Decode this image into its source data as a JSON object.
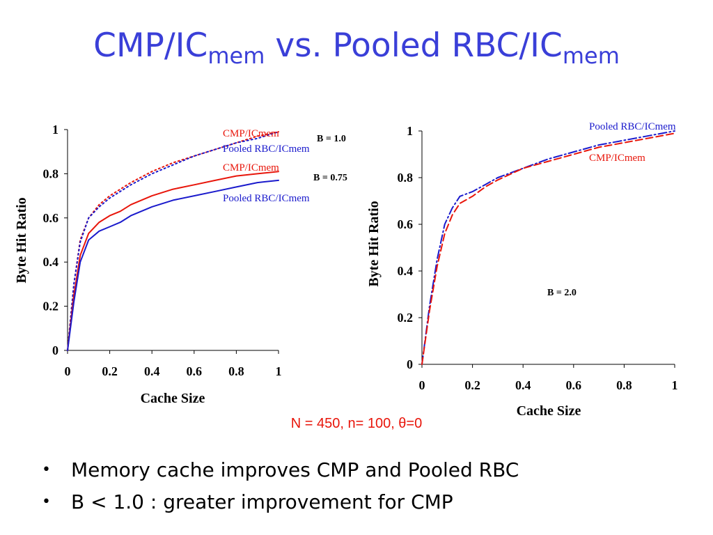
{
  "title": {
    "main": "CMP/IC",
    "sub1": "mem",
    "mid": " vs. Pooled RBC/IC",
    "sub2": "mem"
  },
  "colors": {
    "title": "#3a3fd8",
    "red": "#e8150a",
    "blue": "#1a1acc"
  },
  "params": "N = 450, n= 100, θ=0",
  "bullets": [
    "Memory cache improves CMP and Pooled RBC",
    "B < 1.0 : greater improvement for CMP"
  ],
  "chart_data": [
    {
      "type": "line",
      "xlabel": "Cache Size",
      "ylabel": "Byte Hit Ratio",
      "xlim": [
        0,
        1
      ],
      "ylim": [
        0,
        1
      ],
      "x_ticks": [
        "0",
        "0.2",
        "0.4",
        "0.6",
        "0.8",
        "1"
      ],
      "y_ticks": [
        "0",
        "0.2",
        "0.4",
        "0.6",
        "0.8",
        "1"
      ],
      "annotations": [
        "B = 1.0",
        "B = 0.75"
      ],
      "series": [
        {
          "name": "CMP/ICmem",
          "group": "B = 1.0",
          "color": "red",
          "style": "dotted",
          "x": [
            0,
            0.03,
            0.06,
            0.1,
            0.15,
            0.2,
            0.3,
            0.4,
            0.5,
            0.6,
            0.7,
            0.8,
            0.9,
            1.0
          ],
          "y": [
            0,
            0.3,
            0.5,
            0.6,
            0.66,
            0.7,
            0.76,
            0.81,
            0.85,
            0.88,
            0.91,
            0.94,
            0.97,
            0.99
          ]
        },
        {
          "name": "Pooled RBC/ICmem",
          "group": "B = 1.0",
          "color": "blue",
          "style": "dotted",
          "x": [
            0,
            0.03,
            0.06,
            0.1,
            0.15,
            0.2,
            0.3,
            0.4,
            0.5,
            0.6,
            0.7,
            0.8,
            0.9,
            1.0
          ],
          "y": [
            0,
            0.3,
            0.49,
            0.6,
            0.65,
            0.69,
            0.75,
            0.8,
            0.84,
            0.88,
            0.91,
            0.94,
            0.96,
            0.99
          ]
        },
        {
          "name": "CMP/ICmem",
          "group": "B = 0.75",
          "color": "red",
          "style": "solid",
          "x": [
            0,
            0.03,
            0.06,
            0.1,
            0.15,
            0.2,
            0.25,
            0.3,
            0.4,
            0.5,
            0.6,
            0.7,
            0.8,
            0.9,
            1.0
          ],
          "y": [
            0,
            0.25,
            0.43,
            0.53,
            0.58,
            0.61,
            0.63,
            0.66,
            0.7,
            0.73,
            0.75,
            0.77,
            0.79,
            0.8,
            0.81
          ]
        },
        {
          "name": "Pooled RBC/ICmem",
          "group": "B = 0.75",
          "color": "blue",
          "style": "solid",
          "x": [
            0,
            0.03,
            0.06,
            0.1,
            0.15,
            0.2,
            0.25,
            0.3,
            0.4,
            0.5,
            0.6,
            0.7,
            0.8,
            0.9,
            1.0
          ],
          "y": [
            0,
            0.22,
            0.4,
            0.5,
            0.54,
            0.56,
            0.58,
            0.61,
            0.65,
            0.68,
            0.7,
            0.72,
            0.74,
            0.76,
            0.77
          ]
        }
      ]
    },
    {
      "type": "line",
      "xlabel": "Cache Size",
      "ylabel": "Byte Hit Ratio",
      "xlim": [
        0,
        1
      ],
      "ylim": [
        0,
        1
      ],
      "x_ticks": [
        "0",
        "0.2",
        "0.4",
        "0.6",
        "0.8",
        "1"
      ],
      "y_ticks": [
        "0",
        "0.2",
        "0.4",
        "0.6",
        "0.8",
        "1"
      ],
      "annotations": [
        "B = 2.0"
      ],
      "series": [
        {
          "name": "Pooled RBC/ICmem",
          "group": "B = 2.0",
          "color": "blue",
          "style": "dashdot",
          "x": [
            0,
            0.03,
            0.06,
            0.09,
            0.12,
            0.15,
            0.2,
            0.25,
            0.3,
            0.4,
            0.5,
            0.6,
            0.7,
            0.8,
            0.9,
            1.0
          ],
          "y": [
            0,
            0.25,
            0.45,
            0.6,
            0.67,
            0.72,
            0.74,
            0.77,
            0.8,
            0.84,
            0.88,
            0.91,
            0.94,
            0.96,
            0.98,
            1.0
          ]
        },
        {
          "name": "CMP/ICmem",
          "group": "B = 2.0",
          "color": "red",
          "style": "dashed",
          "x": [
            0,
            0.03,
            0.06,
            0.09,
            0.12,
            0.15,
            0.2,
            0.25,
            0.3,
            0.4,
            0.5,
            0.6,
            0.7,
            0.8,
            0.9,
            1.0
          ],
          "y": [
            0,
            0.23,
            0.42,
            0.56,
            0.64,
            0.69,
            0.72,
            0.76,
            0.79,
            0.84,
            0.87,
            0.9,
            0.93,
            0.95,
            0.97,
            0.99
          ]
        }
      ]
    }
  ]
}
